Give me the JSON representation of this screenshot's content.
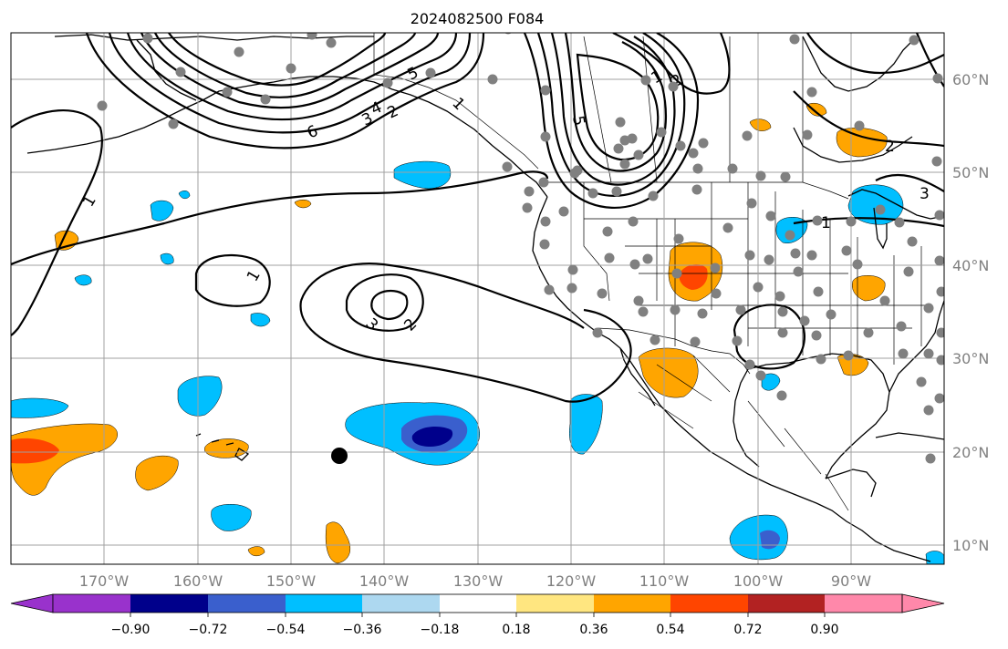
{
  "title": "2024082500 F084",
  "longitude_labels": [
    "170°W",
    "160°W",
    "150°W",
    "140°W",
    "130°W",
    "120°W",
    "110°W",
    "100°W",
    "90°W"
  ],
  "latitude_labels": [
    "60°N",
    "50°N",
    "40°N",
    "30°N",
    "20°N",
    "10°N"
  ],
  "colorbar": {
    "tick_labels": [
      "−0.90",
      "−0.72",
      "−0.54",
      "−0.36",
      "−0.18",
      "0.18",
      "0.36",
      "0.54",
      "0.72",
      "0.90"
    ],
    "colors": [
      "#9932cc",
      "#00008b",
      "#3a5fcd",
      "#00bfff",
      "#add8f0",
      "#ffffff",
      "#ffe680",
      "#ffa500",
      "#ff4500",
      "#b22222",
      "#ff88aa"
    ]
  },
  "contour_labels": [
    "6",
    "5",
    "4",
    "3",
    "2",
    "1",
    "5",
    "2",
    "1",
    "2",
    "3",
    "1",
    "3",
    "2",
    "1",
    "1"
  ],
  "colors": {
    "orange": "#ffa500",
    "red_orange": "#ff4500",
    "deep_sky_blue": "#00bfff",
    "royal_blue": "#3a5fcd",
    "navy": "#00008b",
    "obs_gray": "#808080"
  },
  "marker_icon": "black-dot-marker"
}
